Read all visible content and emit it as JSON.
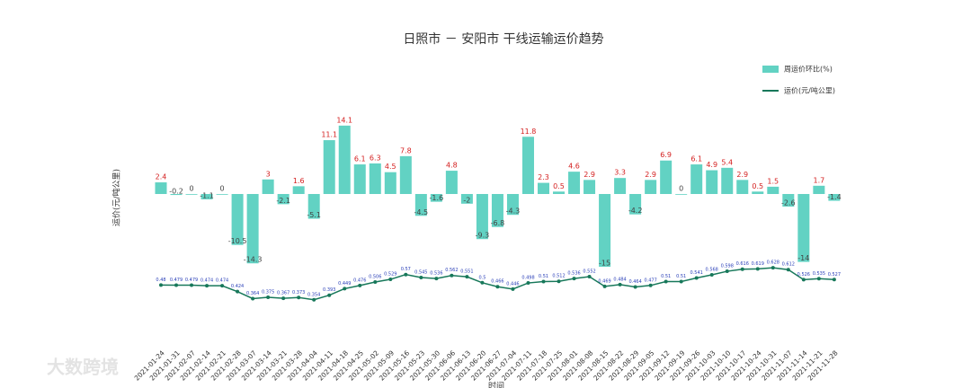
{
  "chart_data": {
    "type": "bar-line",
    "title": "日照市 － 安阳市 干线运输运价趋势",
    "y_label": "运价(元/吨公里)",
    "x_label": "时间",
    "watermark": "大数跨境",
    "categories": [
      "2021-01-24",
      "2021-01-31",
      "2021-02-07",
      "2021-02-14",
      "2021-02-21",
      "2021-02-28",
      "2021-03-07",
      "2021-03-14",
      "2021-03-21",
      "2021-03-28",
      "2021-04-04",
      "2021-04-11",
      "2021-04-18",
      "2021-04-25",
      "2021-05-02",
      "2021-05-09",
      "2021-05-16",
      "2021-05-23",
      "2021-05-30",
      "2021-06-06",
      "2021-06-13",
      "2021-06-20",
      "2021-06-27",
      "2021-07-04",
      "2021-07-11",
      "2021-07-18",
      "2021-07-25",
      "2021-08-01",
      "2021-08-08",
      "2021-08-15",
      "2021-08-22",
      "2021-08-29",
      "2021-09-05",
      "2021-09-12",
      "2021-09-19",
      "2021-09-26",
      "2021-10-03",
      "2021-10-10",
      "2021-10-17",
      "2021-10-24",
      "2021-10-31",
      "2021-11-07",
      "2021-11-14",
      "2021-11-21",
      "2021-11-28"
    ],
    "series": [
      {
        "name": "周运价环比(%)",
        "type": "bar",
        "color": "#62d2c3",
        "values": [
          2.4,
          -0.2,
          0.0,
          -1.1,
          0.0,
          -10.5,
          -14.3,
          3.0,
          -2.1,
          1.6,
          -5.1,
          11.1,
          14.1,
          6.1,
          6.3,
          4.5,
          7.8,
          -4.5,
          -1.6,
          4.8,
          -2.0,
          -9.3,
          -6.8,
          -4.3,
          11.8,
          2.3,
          0.5,
          4.6,
          2.9,
          -15.0,
          3.3,
          -4.2,
          2.9,
          6.9,
          0.0,
          6.1,
          4.9,
          5.4,
          2.9,
          0.5,
          1.5,
          -2.6,
          -14.0,
          1.7,
          -1.4
        ]
      },
      {
        "name": "运价(元/吨公里)",
        "type": "line",
        "color": "#17785a",
        "values": [
          0.48,
          0.479,
          0.479,
          0.474,
          0.474,
          0.424,
          0.364,
          0.375,
          0.367,
          0.373,
          0.354,
          0.393,
          0.449,
          0.476,
          0.506,
          0.529,
          0.57,
          0.545,
          0.536,
          0.562,
          0.551,
          0.5,
          0.466,
          0.446,
          0.498,
          0.51,
          0.512,
          0.536,
          0.552,
          0.469,
          0.484,
          0.464,
          0.477,
          0.51,
          0.51,
          0.541,
          0.568,
          0.598,
          0.616,
          0.619,
          0.628,
          0.612,
          0.526,
          0.535,
          0.527
        ]
      }
    ]
  }
}
